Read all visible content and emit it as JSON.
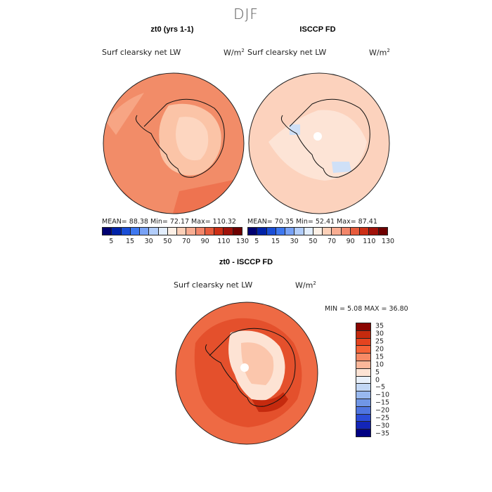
{
  "season": "DJF",
  "panels": [
    {
      "title": "zt0 (yrs 1-1)",
      "variable": "Surf clearsky net LW",
      "units_base": "W/m",
      "units_exp": "2",
      "stats": "MEAN=   88.38  Min=   72.17  Max=  110.32",
      "fill_color": "#f4876a"
    },
    {
      "title": "ISCCP FD",
      "variable": "Surf clearsky net LW",
      "units_base": "W/m",
      "units_exp": "2",
      "stats": "MEAN=   70.35  Min=   52.41  Max=   87.41",
      "fill_color": "#fcd2bd"
    }
  ],
  "abs_colorbar": {
    "colors": [
      "#000070",
      "#0022a8",
      "#1a4ed6",
      "#3e78f0",
      "#78a2f6",
      "#b2cdfa",
      "#e3eefd",
      "#fdf0e6",
      "#fcd0b8",
      "#f8ad92",
      "#f2866a",
      "#e75b3c",
      "#cc2f15",
      "#a0120a",
      "#6e0000"
    ],
    "labels": [
      "5",
      "15",
      "30",
      "50",
      "70",
      "90",
      "110",
      "130"
    ]
  },
  "diff": {
    "title": "zt0 - ISCCP FD",
    "variable": "Surf clearsky net LW",
    "units_base": "W/m",
    "units_exp": "2",
    "stats": "MIN =    5.08 MAX =   36.80",
    "fill_color": "#ee6a44"
  },
  "diff_colorbar": {
    "colors": [
      "#8a0500",
      "#c52a0e",
      "#e4431f",
      "#f56237",
      "#f78a66",
      "#fbb79a",
      "#fde3d4",
      "#e8f0fb",
      "#c2d7f5",
      "#98b8ef",
      "#7096e6",
      "#4f75e0",
      "#2b4cd8",
      "#1325b8",
      "#000083"
    ],
    "labels": [
      "35",
      "30",
      "25",
      "20",
      "15",
      "10",
      "5",
      "0",
      "−5",
      "−10",
      "−15",
      "−20",
      "−25",
      "−30",
      "−35"
    ]
  },
  "chart_data": [
    {
      "type": "heatmap",
      "title": "zt0 (yrs 1-1)",
      "subtitle": "Surf clearsky net LW",
      "units": "W/m2",
      "projection": "south polar stereographic",
      "mean": 88.38,
      "min": 72.17,
      "max": 110.32,
      "colorbar_levels": [
        5,
        15,
        30,
        50,
        70,
        90,
        110,
        130
      ]
    },
    {
      "type": "heatmap",
      "title": "ISCCP FD",
      "subtitle": "Surf clearsky net LW",
      "units": "W/m2",
      "projection": "south polar stereographic",
      "mean": 70.35,
      "min": 52.41,
      "max": 87.41,
      "colorbar_levels": [
        5,
        15,
        30,
        50,
        70,
        90,
        110,
        130
      ]
    },
    {
      "type": "heatmap",
      "title": "zt0 - ISCCP FD",
      "subtitle": "Surf clearsky net LW",
      "units": "W/m2",
      "projection": "south polar stereographic",
      "min": 5.08,
      "max": 36.8,
      "colorbar_levels": [
        35,
        30,
        25,
        20,
        15,
        10,
        5,
        0,
        -5,
        -10,
        -15,
        -20,
        -25,
        -30,
        -35
      ]
    }
  ]
}
